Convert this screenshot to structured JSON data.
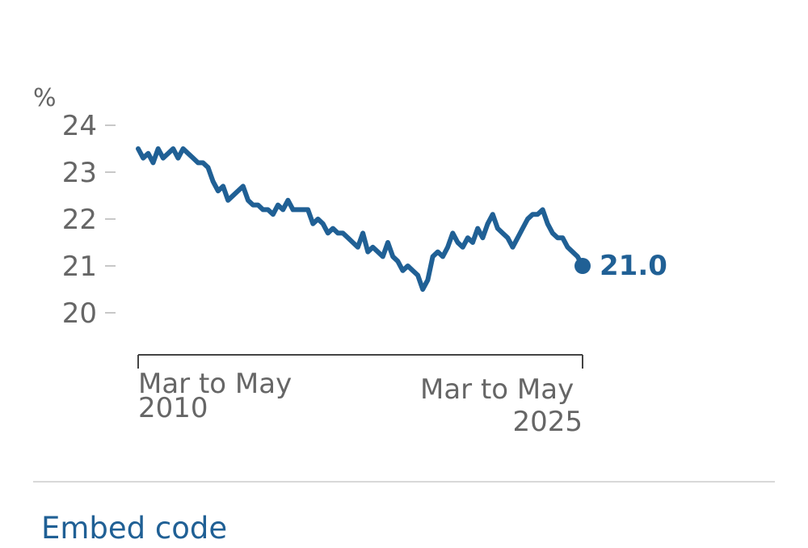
{
  "chart_data": {
    "type": "line",
    "unit_label": "%",
    "ylim": [
      20,
      24
    ],
    "yticks": [
      20,
      21,
      22,
      23,
      24
    ],
    "x_start_label": [
      "Mar to May",
      "2010"
    ],
    "x_end_label": [
      "Mar to May",
      "2025"
    ],
    "last_value_label": "21.0",
    "grid": false,
    "series": [
      {
        "color": "#206095",
        "values": [
          23.5,
          23.3,
          23.4,
          23.2,
          23.5,
          23.3,
          23.4,
          23.5,
          23.3,
          23.5,
          23.4,
          23.3,
          23.2,
          23.2,
          23.1,
          22.8,
          22.6,
          22.7,
          22.4,
          22.5,
          22.6,
          22.7,
          22.4,
          22.3,
          22.3,
          22.2,
          22.2,
          22.1,
          22.3,
          22.2,
          22.4,
          22.2,
          22.2,
          22.2,
          22.2,
          21.9,
          22.0,
          21.9,
          21.7,
          21.8,
          21.7,
          21.7,
          21.6,
          21.5,
          21.4,
          21.7,
          21.3,
          21.4,
          21.3,
          21.2,
          21.5,
          21.2,
          21.1,
          20.9,
          21.0,
          20.9,
          20.8,
          20.5,
          20.7,
          21.2,
          21.3,
          21.2,
          21.4,
          21.7,
          21.5,
          21.4,
          21.6,
          21.5,
          21.8,
          21.6,
          21.9,
          22.1,
          21.8,
          21.7,
          21.6,
          21.4,
          21.6,
          21.8,
          22.0,
          22.1,
          22.1,
          22.2,
          21.9,
          21.7,
          21.6,
          21.6,
          21.4,
          21.3,
          21.2,
          21.0
        ]
      }
    ]
  },
  "footer": {
    "embed_label": "Embed code"
  }
}
